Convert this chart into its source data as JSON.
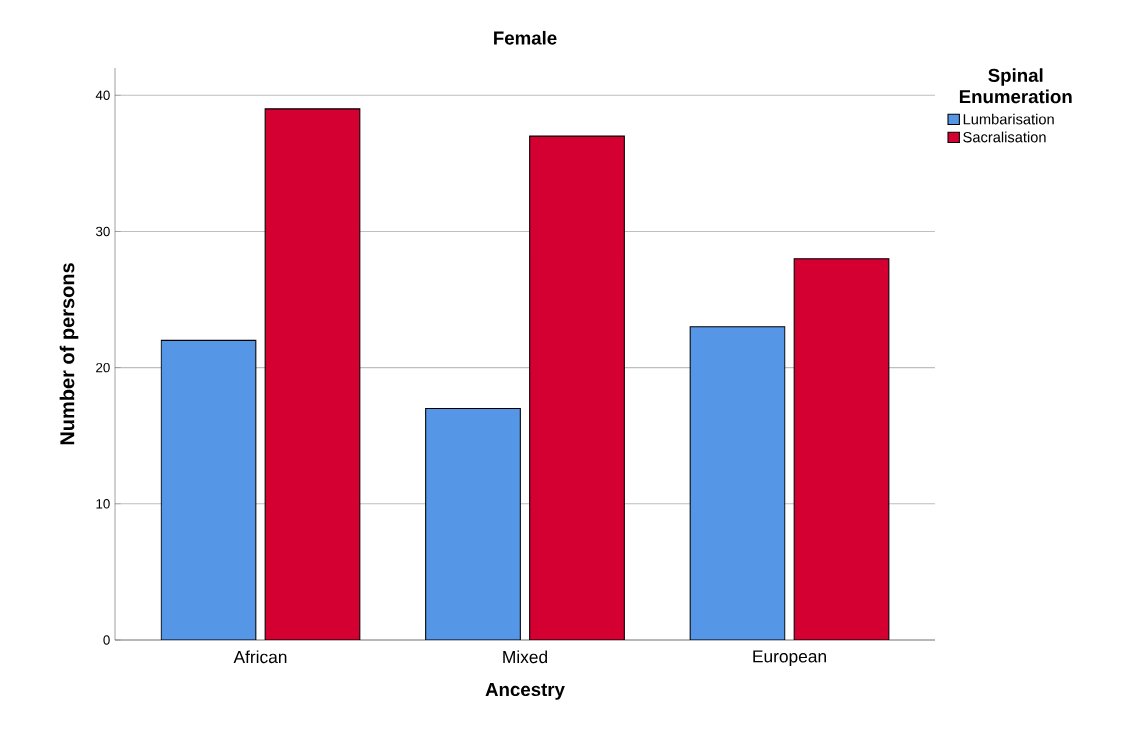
{
  "chart_data": {
    "type": "bar",
    "title": "Female",
    "xlabel": "Ancestry",
    "ylabel": "Number of persons",
    "legend_title": "Spinal Enumeration",
    "categories": [
      "African",
      "Mixed",
      "European"
    ],
    "series": [
      {
        "name": "Lumbarisation",
        "color": "#5596e6",
        "values": [
          22,
          17,
          23
        ]
      },
      {
        "name": "Sacralisation",
        "color": "#d50032",
        "values": [
          39,
          37,
          28
        ]
      }
    ],
    "ylim": [
      0,
      42
    ],
    "yticks": [
      0,
      10,
      20,
      30,
      40
    ],
    "grid": "y",
    "legend": "top right"
  }
}
